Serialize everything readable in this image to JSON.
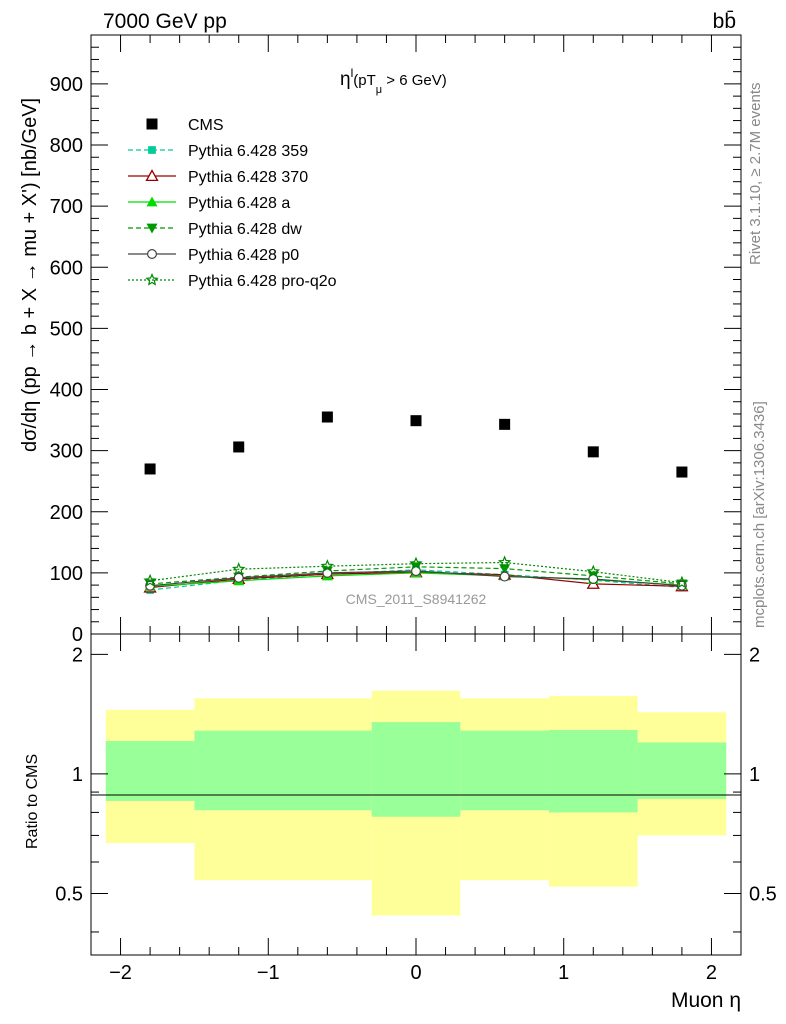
{
  "header": {
    "energy": "7000 GeV pp",
    "process": "bb̄",
    "rivet": "Rivet 3.1.10, ≥ 2.7M events",
    "mcplots": "mcplots.cern.ch [arXiv:1306.3436]",
    "watermark": "CMS_2011_S8941262"
  },
  "chart_data": [
    {
      "type": "scatter",
      "title": "η^l (pT_μ > 6 GeV)",
      "title_main": "η",
      "title_sup": "l",
      "title_open": "(pT",
      "title_sub": "μ",
      "title_rest": " >  6 GeV)",
      "ylabel": "dσ/dη (pp → b + X → mu + X') [nb/GeV]",
      "xlim": [
        -2.2,
        2.2
      ],
      "ylim": [
        0,
        980
      ],
      "yticks": [
        0,
        100,
        200,
        300,
        400,
        500,
        600,
        700,
        800,
        900
      ],
      "legend_placement": "top-left",
      "x": [
        -1.8,
        -1.2,
        -0.6,
        0.0,
        0.6,
        1.2,
        1.8
      ],
      "series": [
        {
          "name": "CMS",
          "color": "#000000",
          "marker": "square",
          "line": "none",
          "values": [
            270,
            306,
            355,
            349,
            343,
            298,
            265
          ]
        },
        {
          "name": "Pythia 6.428 359",
          "color": "#00cc99",
          "marker": "small-square",
          "line": "dashed",
          "values": [
            72,
            88,
            98,
            105,
            97,
            88,
            76
          ]
        },
        {
          "name": "Pythia 6.428 370",
          "color": "#990000",
          "marker": "open-triangle",
          "line": "solid",
          "values": [
            76,
            90,
            98,
            101,
            97,
            82,
            78
          ]
        },
        {
          "name": "Pythia 6.428 a",
          "color": "#00dd00",
          "marker": "filled-triangle",
          "line": "solid",
          "values": [
            78,
            87,
            95,
            100,
            95,
            89,
            80
          ]
        },
        {
          "name": "Pythia 6.428 dw",
          "color": "#009900",
          "marker": "filled-triangle-down",
          "line": "dashed",
          "values": [
            82,
            93,
            103,
            110,
            107,
            95,
            82
          ]
        },
        {
          "name": "Pythia 6.428 p0",
          "color": "#444444",
          "marker": "open-circle",
          "line": "solid",
          "values": [
            79,
            92,
            100,
            103,
            94,
            90,
            79
          ]
        },
        {
          "name": "Pythia 6.428 pro-q2o",
          "color": "#008800",
          "marker": "open-star",
          "line": "dotted",
          "values": [
            87,
            106,
            111,
            115,
            117,
            102,
            84
          ]
        }
      ]
    },
    {
      "type": "area",
      "ylabel": "Ratio to CMS",
      "xlabel": "Muon η",
      "xlim": [
        -2.2,
        2.2
      ],
      "ylim": [
        0.35,
        2.25
      ],
      "yticks": [
        0.5,
        1,
        2
      ],
      "xticks": [
        -2,
        -1,
        0,
        1,
        2
      ],
      "reference_line": 1,
      "bins": [
        {
          "x0": -2.1,
          "x1": -1.5,
          "inner": [
            0.855,
            1.21
          ],
          "outer": [
            0.67,
            1.45
          ]
        },
        {
          "x0": -1.5,
          "x1": -0.3,
          "inner": [
            0.81,
            1.285
          ],
          "outer": [
            0.54,
            1.55
          ]
        },
        {
          "x0": -0.3,
          "x1": 0.3,
          "inner": [
            0.78,
            1.35
          ],
          "outer": [
            0.44,
            1.62
          ]
        },
        {
          "x0": 0.3,
          "x1": 0.9,
          "inner": [
            0.81,
            1.285
          ],
          "outer": [
            0.54,
            1.55
          ]
        },
        {
          "x0": 0.9,
          "x1": 1.5,
          "inner": [
            0.8,
            1.29
          ],
          "outer": [
            0.52,
            1.57
          ]
        },
        {
          "x0": 1.5,
          "x1": 2.1,
          "inner": [
            0.865,
            1.2
          ],
          "outer": [
            0.7,
            1.43
          ]
        }
      ],
      "band_colors": {
        "inner": "#99ff99",
        "outer": "#ffff99"
      }
    }
  ]
}
